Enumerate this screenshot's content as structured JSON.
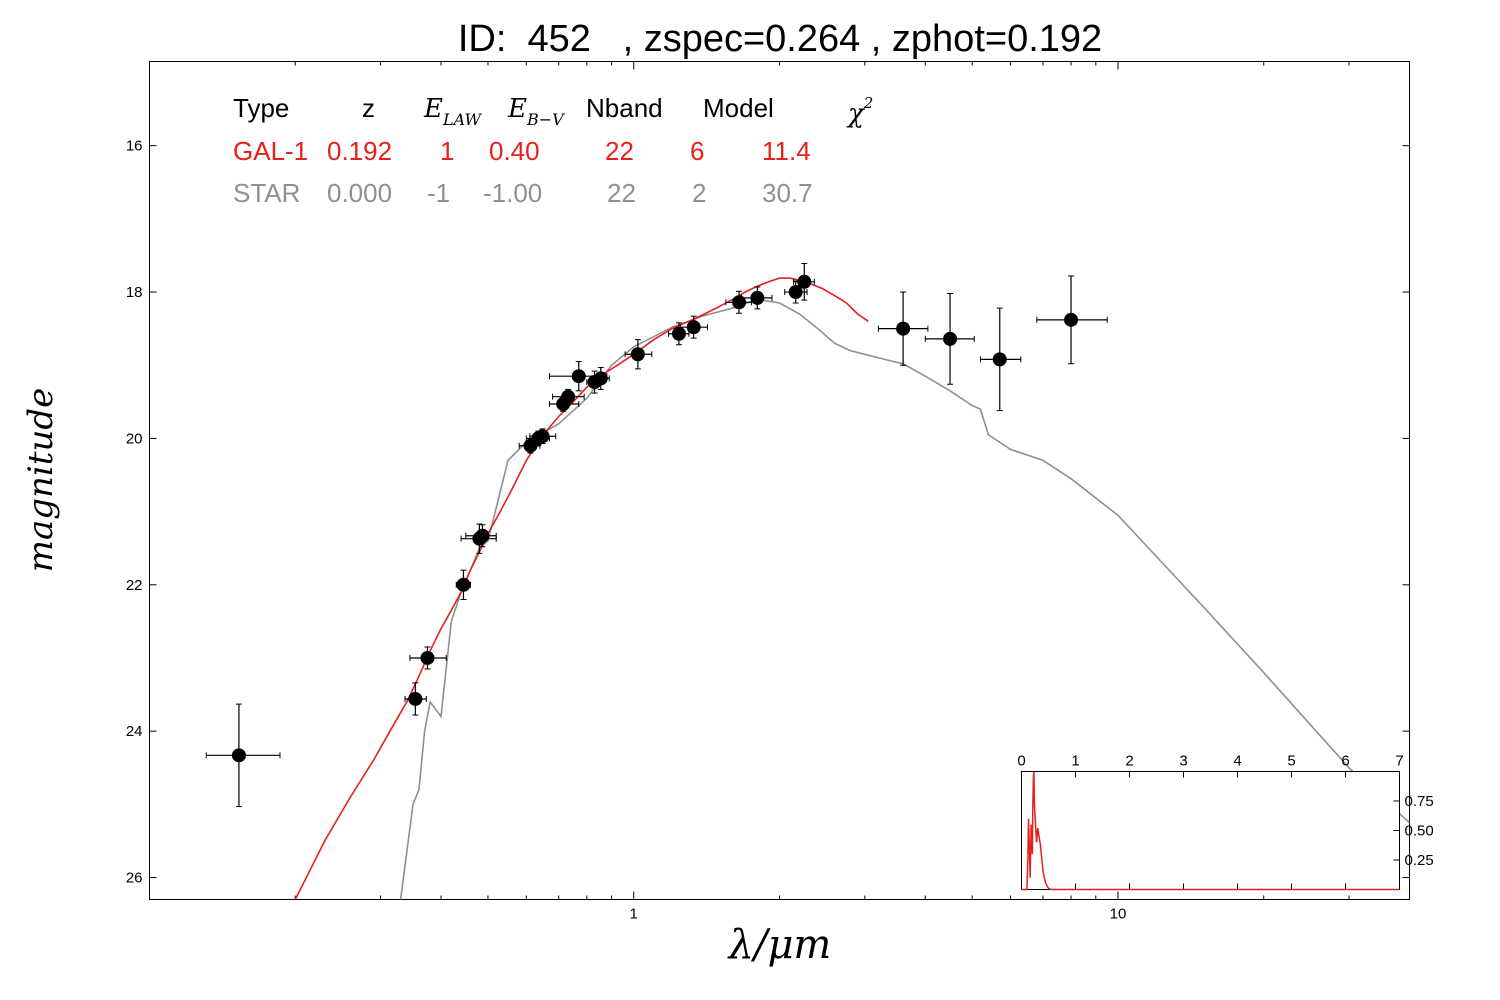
{
  "title": "ID:  452   , zspec=0.264 , zphot=0.192",
  "colors": {
    "galaxy": "#e8201c",
    "star": "#909090",
    "points": "#000000",
    "frame": "#000000"
  },
  "table": {
    "headers": [
      "Type",
      "z",
      "E_LAW",
      "E_B-V",
      "Nband",
      "Model",
      "χ²"
    ],
    "math_headers": {
      "elaw_main": "E",
      "elaw_sub": "LAW",
      "ebv_main": "E",
      "ebv_sub": "B−V",
      "chi_main": "χ",
      "chi_sup": "2"
    },
    "rows": [
      {
        "type": "GAL-1",
        "z": "0.192",
        "elaw": "1",
        "ebv": "0.40",
        "nband": "22",
        "model": "6",
        "chi2": "11.4",
        "color": "#e8201c"
      },
      {
        "type": "STAR",
        "z": "0.000",
        "elaw": "-1",
        "ebv": "-1.00",
        "nband": "22",
        "model": "2",
        "chi2": "30.7",
        "color": "#909090"
      }
    ]
  },
  "chart_data": [
    {
      "type": "scatter",
      "xlabel": "λ/μm",
      "ylabel": "magnitude",
      "xscale": "log",
      "xlim": [
        0.1,
        40
      ],
      "ylim": [
        26.3,
        14.85
      ],
      "y_inverted": true,
      "xticks": [
        1,
        10
      ],
      "xtick_labels": [
        "1",
        "10"
      ],
      "yticks": [
        16,
        18,
        20,
        22,
        24,
        26
      ],
      "ytick_labels": [
        "16",
        "18",
        "20",
        "22",
        "24",
        "26"
      ],
      "grid": false,
      "observations": [
        {
          "x": 0.153,
          "y": 24.33,
          "xerr": [
            0.131,
            0.186
          ],
          "yerr": 0.7
        },
        {
          "x": 0.354,
          "y": 23.56,
          "xerr": [
            0.337,
            0.373
          ],
          "yerr": 0.22
        },
        {
          "x": 0.375,
          "y": 23.0,
          "xerr": [
            0.345,
            0.41
          ],
          "yerr": 0.15
        },
        {
          "x": 0.445,
          "y": 22.0,
          "xerr": [
            0.43,
            0.46
          ],
          "yerr": 0.2
        },
        {
          "x": 0.48,
          "y": 21.37,
          "xerr": [
            0.44,
            0.52
          ],
          "yerr": 0.2
        },
        {
          "x": 0.487,
          "y": 21.33,
          "xerr": [
            0.45,
            0.52
          ],
          "yerr": 0.15
        },
        {
          "x": 0.612,
          "y": 20.1,
          "xerr": [
            0.58,
            0.64
          ],
          "yerr": 0.1
        },
        {
          "x": 0.635,
          "y": 20.0,
          "xerr": [
            0.6,
            0.67
          ],
          "yerr": 0.1
        },
        {
          "x": 0.648,
          "y": 19.97,
          "xerr": [
            0.61,
            0.69
          ],
          "yerr": 0.1
        },
        {
          "x": 0.715,
          "y": 19.53,
          "xerr": [
            0.67,
            0.77
          ],
          "yerr": 0.1
        },
        {
          "x": 0.732,
          "y": 19.43,
          "xerr": [
            0.68,
            0.79
          ],
          "yerr": 0.1
        },
        {
          "x": 0.77,
          "y": 19.15,
          "xerr": [
            0.67,
            0.88
          ],
          "yerr": 0.2
        },
        {
          "x": 0.83,
          "y": 19.23,
          "xerr": [
            0.8,
            0.86
          ],
          "yerr": 0.15
        },
        {
          "x": 0.855,
          "y": 19.18,
          "xerr": [
            0.82,
            0.89
          ],
          "yerr": 0.15
        },
        {
          "x": 1.02,
          "y": 18.85,
          "xerr": [
            0.96,
            1.09
          ],
          "yerr": 0.2
        },
        {
          "x": 1.24,
          "y": 18.57,
          "xerr": [
            1.18,
            1.3
          ],
          "yerr": 0.15
        },
        {
          "x": 1.33,
          "y": 18.48,
          "xerr": [
            1.25,
            1.42
          ],
          "yerr": 0.15
        },
        {
          "x": 1.65,
          "y": 18.14,
          "xerr": [
            1.55,
            1.75
          ],
          "yerr": 0.15
        },
        {
          "x": 1.8,
          "y": 18.08,
          "xerr": [
            1.67,
            1.93
          ],
          "yerr": 0.15
        },
        {
          "x": 2.16,
          "y": 18.0,
          "xerr": [
            2.05,
            2.28
          ],
          "yerr": 0.15
        },
        {
          "x": 2.25,
          "y": 17.86,
          "xerr": [
            2.14,
            2.36
          ],
          "yerr": 0.25
        },
        {
          "x": 3.6,
          "y": 18.5,
          "xerr": [
            3.2,
            4.05
          ],
          "yerr": 0.5
        },
        {
          "x": 4.5,
          "y": 18.64,
          "xerr": [
            4.0,
            5.05
          ],
          "yerr": 0.62
        },
        {
          "x": 5.7,
          "y": 18.92,
          "xerr": [
            5.2,
            6.3
          ],
          "yerr": 0.7
        },
        {
          "x": 8.0,
          "y": 18.38,
          "xerr": [
            6.8,
            9.5
          ],
          "yerr": 0.6
        }
      ],
      "series": [
        {
          "name": "GAL-1",
          "color": "#e8201c",
          "x": [
            0.2,
            0.23,
            0.26,
            0.29,
            0.32,
            0.34,
            0.36,
            0.38,
            0.4,
            0.42,
            0.44,
            0.46,
            0.48,
            0.5,
            0.53,
            0.56,
            0.6,
            0.65,
            0.7,
            0.75,
            0.8,
            0.85,
            0.9,
            0.95,
            1.0,
            1.1,
            1.2,
            1.3,
            1.4,
            1.5,
            1.6,
            1.7,
            1.8,
            1.9,
            2.0,
            2.1,
            2.2,
            2.3,
            2.45,
            2.6,
            2.75,
            2.9,
            3.05
          ],
          "y": [
            26.3,
            25.5,
            24.9,
            24.4,
            23.9,
            23.6,
            23.25,
            22.9,
            22.6,
            22.35,
            22.1,
            21.8,
            21.55,
            21.3,
            21.0,
            20.7,
            20.3,
            19.95,
            19.7,
            19.5,
            19.3,
            19.15,
            19.05,
            18.95,
            18.85,
            18.65,
            18.5,
            18.4,
            18.3,
            18.2,
            18.1,
            18.0,
            17.92,
            17.86,
            17.81,
            17.81,
            17.84,
            17.88,
            17.95,
            18.05,
            18.15,
            18.3,
            18.4
          ]
        },
        {
          "name": "STAR",
          "color": "#909090",
          "x": [
            0.33,
            0.35,
            0.36,
            0.37,
            0.38,
            0.4,
            0.42,
            0.44,
            0.46,
            0.48,
            0.5,
            0.55,
            0.6,
            0.7,
            0.8,
            0.9,
            1.0,
            1.2,
            1.4,
            1.6,
            1.8,
            2.0,
            2.2,
            2.4,
            2.6,
            2.8,
            3.0,
            3.3,
            3.6,
            4.0,
            4.5,
            5.0,
            5.2,
            5.4,
            6.0,
            7.0,
            8.0,
            10,
            15,
            20,
            30,
            40
          ],
          "y": [
            26.3,
            25.0,
            24.8,
            24.0,
            23.6,
            23.8,
            22.5,
            22.1,
            21.8,
            21.5,
            21.4,
            20.3,
            20.05,
            19.8,
            19.45,
            19.0,
            18.75,
            18.48,
            18.32,
            18.22,
            18.1,
            18.15,
            18.3,
            18.5,
            18.7,
            18.8,
            18.85,
            18.92,
            18.98,
            19.15,
            19.35,
            19.55,
            19.6,
            19.95,
            20.15,
            20.3,
            20.55,
            21.05,
            22.3,
            23.2,
            24.5,
            25.25
          ]
        }
      ]
    },
    {
      "type": "line",
      "panel": "inset",
      "xlim": [
        0,
        7
      ],
      "ylim": [
        0,
        1
      ],
      "xticks": [
        0,
        1,
        2,
        3,
        4,
        5,
        6,
        7
      ],
      "xtick_labels": [
        "0",
        "1",
        "2",
        "3",
        "4",
        "5",
        "6",
        "7"
      ],
      "yticks": [
        0.25,
        0.5,
        0.75
      ],
      "ytick_labels": [
        "0.25",
        "0.50",
        "0.75"
      ],
      "series": [
        {
          "color": "#e8201c",
          "x": [
            0,
            0.1,
            0.12,
            0.13,
            0.15,
            0.16,
            0.18,
            0.2,
            0.21,
            0.22,
            0.23,
            0.24,
            0.26,
            0.28,
            0.3,
            0.35,
            0.4,
            0.45,
            0.5,
            0.55,
            1,
            7
          ],
          "y": [
            0,
            0,
            0.3,
            0.6,
            0.3,
            0.1,
            0.55,
            0.3,
            0.7,
            0.95,
            1.0,
            0.7,
            0.55,
            0.4,
            0.52,
            0.38,
            0.15,
            0.05,
            0.01,
            0,
            0,
            0
          ]
        }
      ]
    }
  ]
}
